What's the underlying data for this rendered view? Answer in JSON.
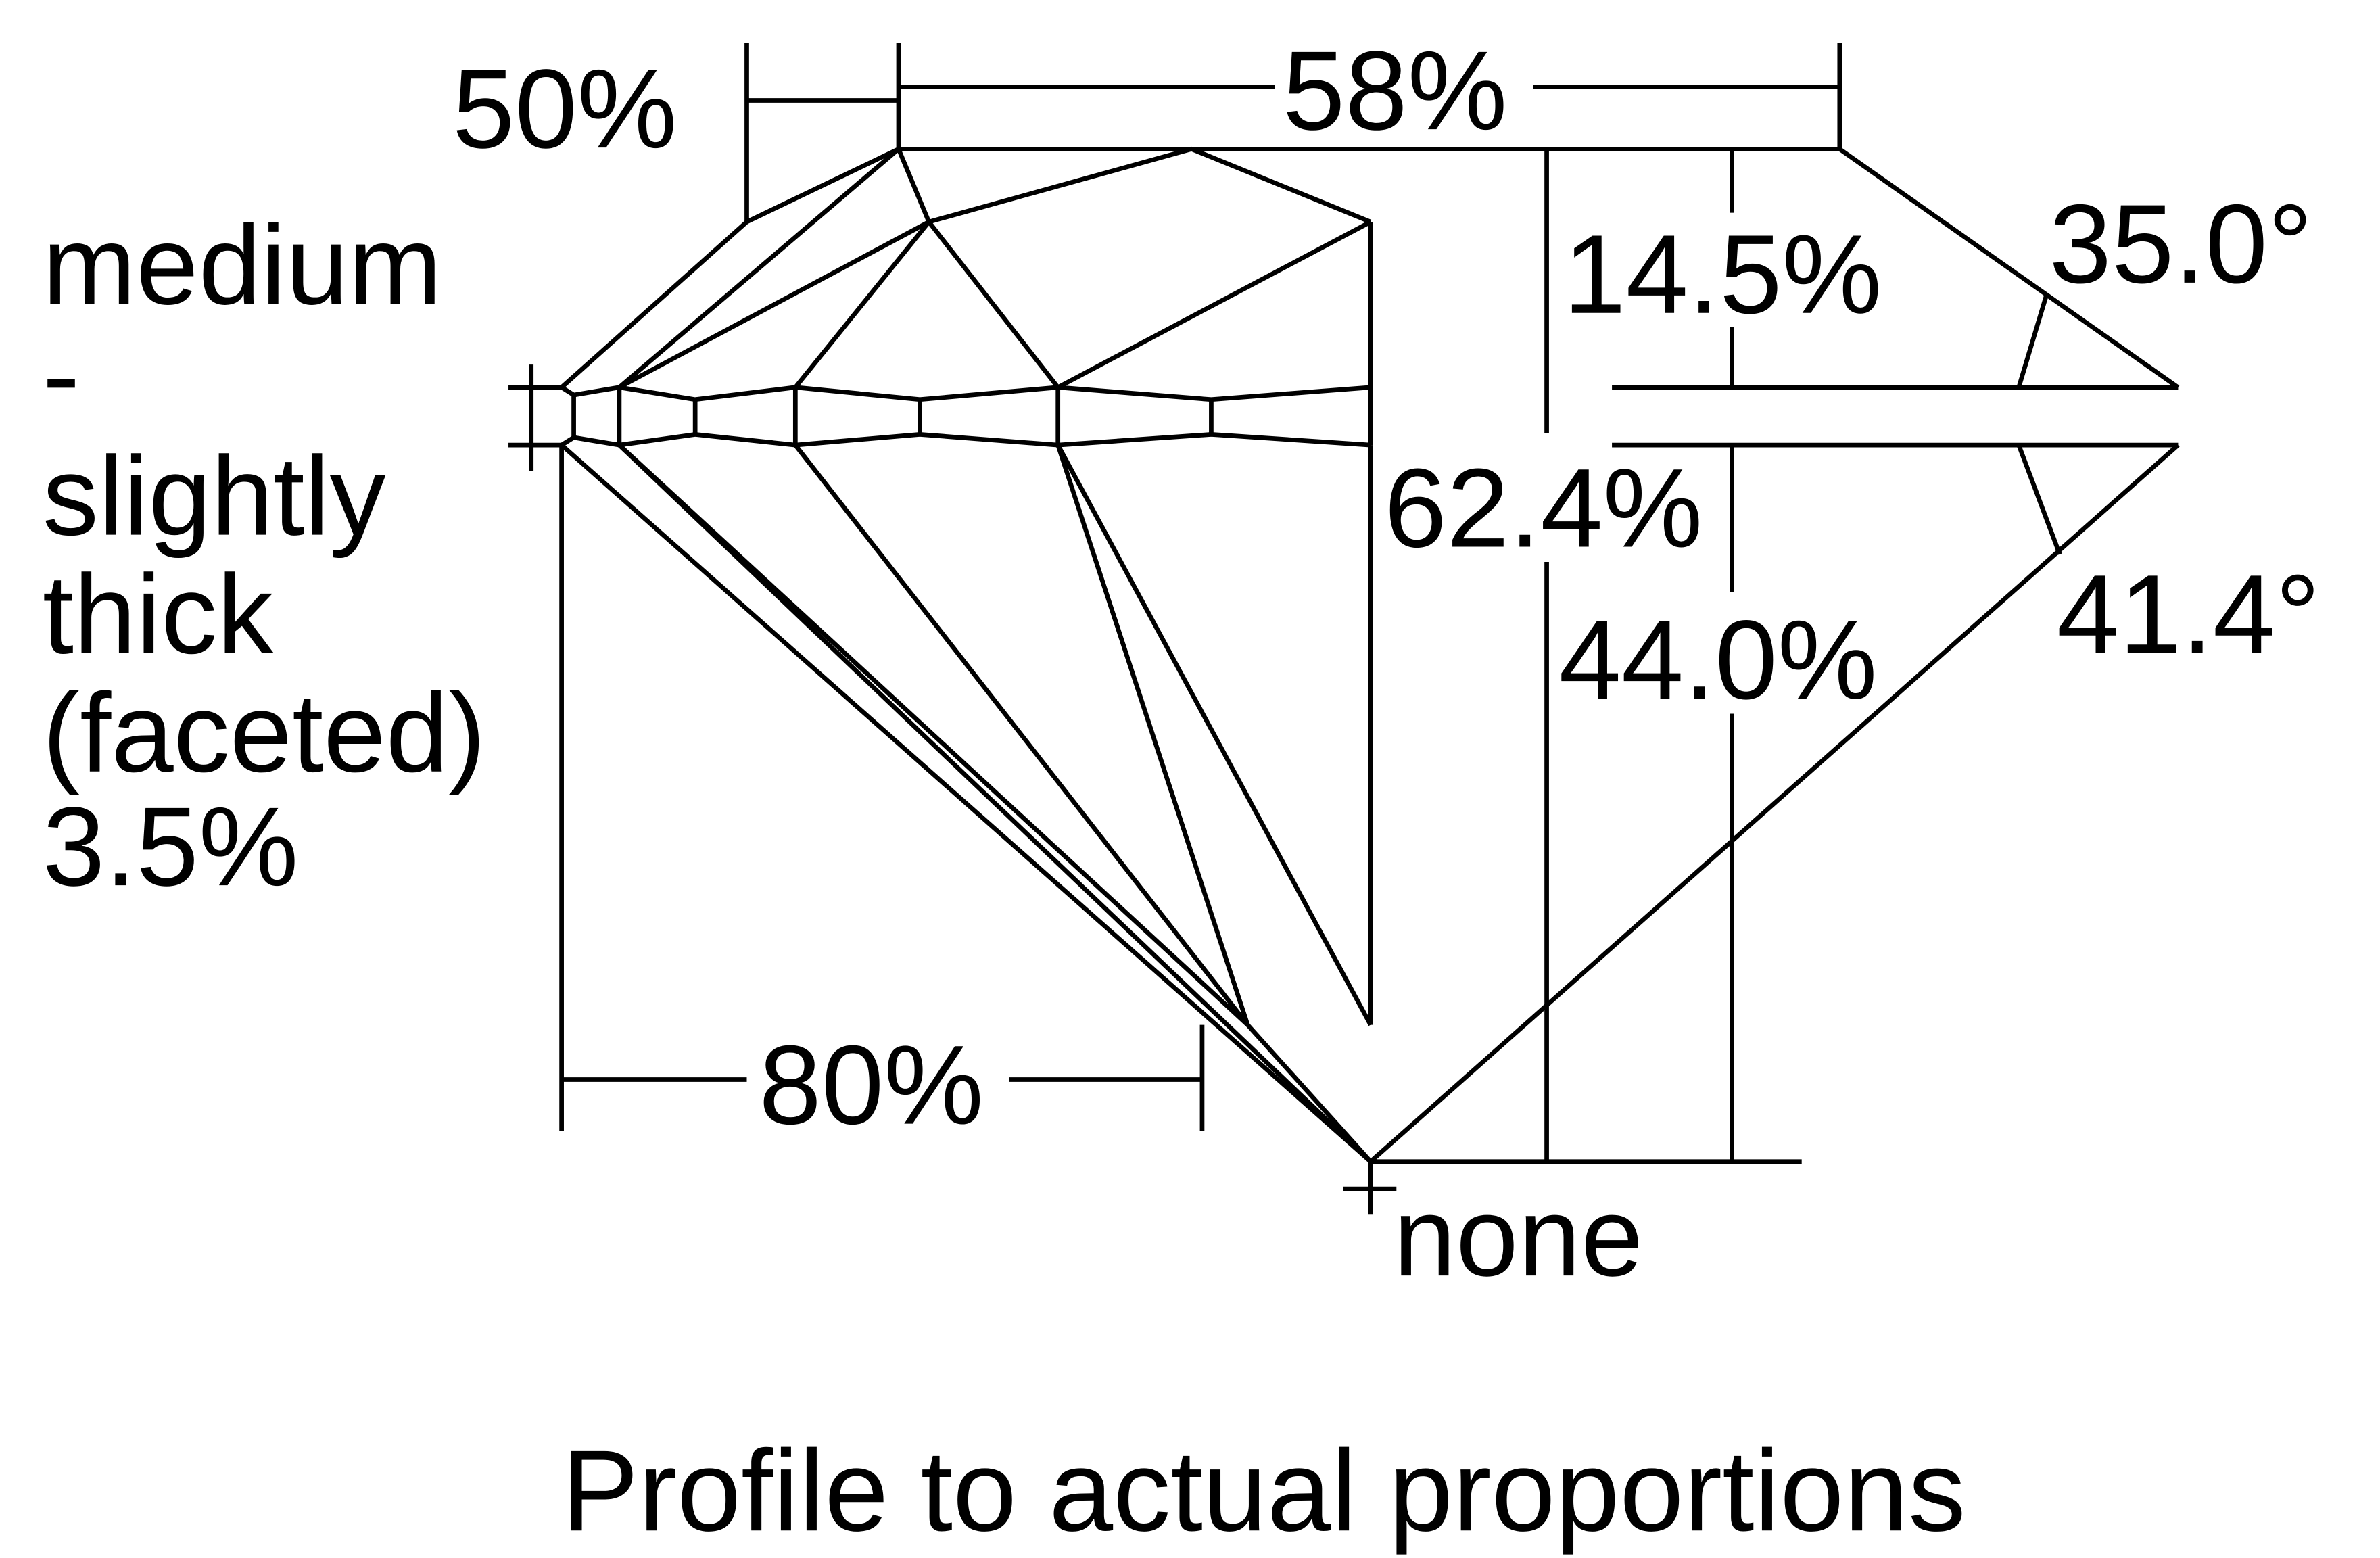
{
  "labels": {
    "star_length": "50%",
    "table": "58%",
    "crown_height": "14.5%",
    "crown_angle": "35.0°",
    "total_depth": "62.4%",
    "pavilion_depth": "44.0%",
    "pavilion_angle": "41.4°",
    "lower_half": "80%",
    "culet": "none",
    "girdle_lines": [
      "medium",
      "-",
      "slightly",
      "thick",
      "(faceted)",
      "3.5%"
    ]
  },
  "caption": "Profile to actual proportions",
  "colors": {
    "line": "#000000",
    "background": "#ffffff"
  }
}
